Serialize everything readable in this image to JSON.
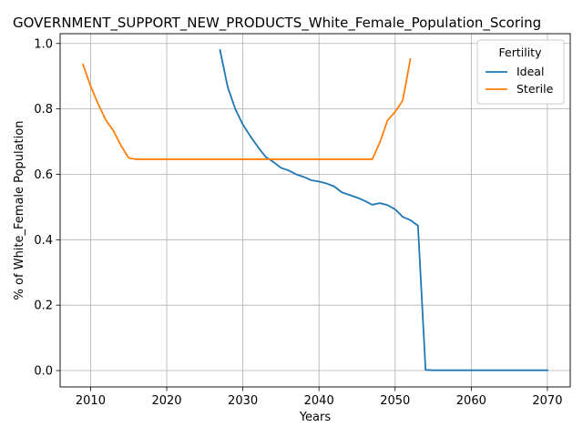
{
  "chart_data": {
    "type": "line",
    "title": "GOVERNMENT_SUPPORT_NEW_PRODUCTS_White_Female_Population_Scoring",
    "xlabel": "Years",
    "ylabel": "% of White_Female Population",
    "xlim": [
      2006,
      2073
    ],
    "ylim": [
      -0.05,
      1.03
    ],
    "xticks": [
      2010,
      2020,
      2030,
      2040,
      2050,
      2060,
      2070
    ],
    "yticks": [
      0.0,
      0.2,
      0.4,
      0.6,
      0.8,
      1.0
    ],
    "xtick_labels": [
      "2010",
      "2020",
      "2030",
      "2040",
      "2050",
      "2060",
      "2070"
    ],
    "ytick_labels": [
      "0.0",
      "0.2",
      "0.4",
      "0.6",
      "0.8",
      "1.0"
    ],
    "grid": true,
    "legend": {
      "title": "Fertility",
      "position": "upper right"
    },
    "series": [
      {
        "name": "Ideal",
        "color": "#1f77b4",
        "x": [
          2027,
          2028,
          2029,
          2030,
          2031,
          2032,
          2033,
          2034,
          2035,
          2036,
          2037,
          2038,
          2039,
          2040,
          2041,
          2042,
          2043,
          2044,
          2045,
          2046,
          2047,
          2048,
          2049,
          2050,
          2051,
          2052,
          2053,
          2054,
          2055,
          2060,
          2065,
          2070
        ],
        "y": [
          0.98,
          0.868,
          0.8,
          0.752,
          0.716,
          0.683,
          0.653,
          0.638,
          0.62,
          0.612,
          0.6,
          0.592,
          0.582,
          0.578,
          0.572,
          0.563,
          0.545,
          0.537,
          0.529,
          0.519,
          0.507,
          0.512,
          0.506,
          0.493,
          0.47,
          0.46,
          0.443,
          0.002,
          0.001,
          0.001,
          0.001,
          0.001
        ]
      },
      {
        "name": "Sterile",
        "color": "#ff7f0e",
        "x": [
          2009,
          2010,
          2011,
          2012,
          2013,
          2014,
          2015,
          2016,
          2020,
          2030,
          2040,
          2047,
          2048,
          2049,
          2050,
          2051,
          2052
        ],
        "y": [
          0.936,
          0.87,
          0.815,
          0.766,
          0.733,
          0.688,
          0.65,
          0.646,
          0.646,
          0.646,
          0.646,
          0.646,
          0.698,
          0.765,
          0.791,
          0.826,
          0.952
        ]
      }
    ]
  }
}
